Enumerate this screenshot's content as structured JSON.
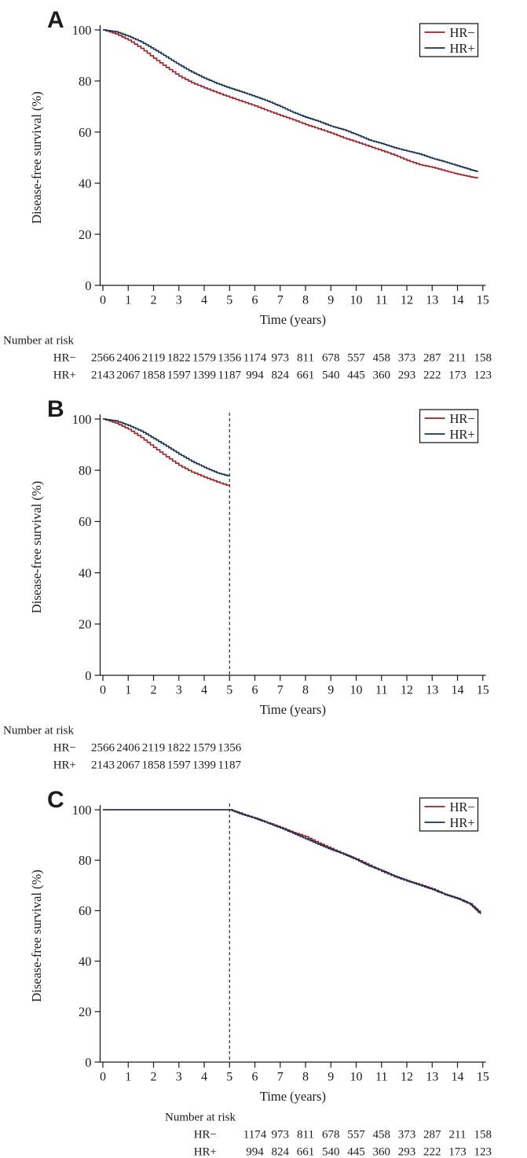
{
  "figure_title": "",
  "colors": {
    "hr_minus": "#9b2026",
    "hr_plus": "#17324f",
    "axis": "#1c1c1c",
    "dashed_line": "#1c1c1c",
    "legend_border": "#1c1c1c",
    "background": "#ffffff"
  },
  "chart_data": [
    {
      "type": "line",
      "panel_label": "A",
      "title": "",
      "xlabel": "Time (years)",
      "ylabel": "Disease-free survival (%)",
      "xlim": [
        0,
        15
      ],
      "ylim": [
        0,
        100
      ],
      "x_ticks": [
        0,
        1,
        2,
        3,
        4,
        5,
        6,
        7,
        8,
        9,
        10,
        11,
        12,
        13,
        14,
        15
      ],
      "y_ticks": [
        0,
        20,
        40,
        60,
        80,
        100
      ],
      "grid": false,
      "step": true,
      "legend_position": "top-right",
      "legend": [
        {
          "label": "HR−",
          "color": "#9b2026"
        },
        {
          "label": "HR+",
          "color": "#17324f"
        }
      ],
      "dashed_vline_x": null,
      "series": [
        {
          "name": "HR−",
          "color": "#9b2026",
          "x": [
            0,
            0.5,
            1,
            1.5,
            2,
            2.5,
            3,
            3.5,
            4,
            4.5,
            5,
            5.5,
            6,
            6.5,
            7,
            7.5,
            8,
            8.5,
            9,
            9.5,
            10,
            10.5,
            11,
            11.5,
            12,
            12.5,
            13,
            13.5,
            14,
            14.5,
            14.8
          ],
          "y": [
            100,
            98.4,
            96.0,
            92.8,
            88.9,
            85.3,
            81.9,
            79.3,
            77.3,
            75.4,
            73.6,
            71.9,
            70.2,
            68.3,
            66.5,
            64.8,
            62.9,
            61.3,
            59.6,
            57.7,
            56.1,
            54.4,
            52.7,
            51.0,
            48.9,
            47.2,
            46.2,
            44.8,
            43.5,
            42.5,
            42.0
          ]
        },
        {
          "name": "HR+",
          "color": "#17324f",
          "x": [
            0,
            0.5,
            1,
            1.5,
            2,
            2.5,
            3,
            3.5,
            4,
            4.5,
            5,
            5.5,
            6,
            6.5,
            7,
            7.5,
            8,
            8.5,
            9,
            9.5,
            10,
            10.5,
            11,
            11.5,
            12,
            12.5,
            13,
            13.5,
            14,
            14.5,
            14.8
          ],
          "y": [
            100,
            99.3,
            97.5,
            95.3,
            92.4,
            89.4,
            86.3,
            83.5,
            81.1,
            79.0,
            77.2,
            75.6,
            73.9,
            72.1,
            70.0,
            67.7,
            65.8,
            64.2,
            62.3,
            60.9,
            59.0,
            56.9,
            55.5,
            53.9,
            52.6,
            51.4,
            49.7,
            48.3,
            46.8,
            45.3,
            44.5
          ]
        }
      ],
      "number_at_risk": {
        "title": "Number at risk",
        "start_year": 0,
        "rows": [
          {
            "label": "HR−",
            "values": [
              2566,
              2406,
              2119,
              1822,
              1579,
              1356,
              1174,
              973,
              811,
              678,
              557,
              458,
              373,
              287,
              211,
              158
            ]
          },
          {
            "label": "HR+",
            "values": [
              2143,
              2067,
              1858,
              1597,
              1399,
              1187,
              994,
              824,
              661,
              540,
              445,
              360,
              293,
              222,
              173,
              123
            ]
          }
        ]
      }
    },
    {
      "type": "line",
      "panel_label": "B",
      "title": "",
      "xlabel": "Time (years)",
      "ylabel": "Disease-free survival (%)",
      "xlim": [
        0,
        15
      ],
      "ylim": [
        0,
        100
      ],
      "x_ticks": [
        0,
        1,
        2,
        3,
        4,
        5,
        6,
        7,
        8,
        9,
        10,
        11,
        12,
        13,
        14,
        15
      ],
      "y_ticks": [
        0,
        20,
        40,
        60,
        80,
        100
      ],
      "grid": false,
      "step": true,
      "legend_position": "top-right",
      "legend": [
        {
          "label": "HR−",
          "color": "#9b2026"
        },
        {
          "label": "HR+",
          "color": "#17324f"
        }
      ],
      "dashed_vline_x": 5,
      "series": [
        {
          "name": "HR−",
          "color": "#9b2026",
          "x": [
            0,
            0.5,
            1,
            1.5,
            2,
            2.5,
            3,
            3.5,
            4,
            4.5,
            5
          ],
          "y": [
            100,
            98.4,
            96.0,
            92.8,
            88.9,
            85.3,
            81.9,
            79.3,
            77.3,
            75.4,
            73.8
          ]
        },
        {
          "name": "HR+",
          "color": "#17324f",
          "x": [
            0,
            0.5,
            1,
            1.5,
            2,
            2.5,
            3,
            3.5,
            4,
            4.5,
            5
          ],
          "y": [
            100,
            99.3,
            97.5,
            95.3,
            92.4,
            89.4,
            86.3,
            83.5,
            81.1,
            79.0,
            77.6
          ]
        }
      ],
      "number_at_risk": {
        "title": "Number at risk",
        "start_year": 0,
        "rows": [
          {
            "label": "HR−",
            "values": [
              2566,
              2406,
              2119,
              1822,
              1579,
              1356
            ]
          },
          {
            "label": "HR+",
            "values": [
              2143,
              2067,
              1858,
              1597,
              1399,
              1187
            ]
          }
        ]
      }
    },
    {
      "type": "line",
      "panel_label": "C",
      "title": "",
      "xlabel": "Time (years)",
      "ylabel": "Disease-free survival (%)",
      "xlim": [
        0,
        15
      ],
      "ylim": [
        0,
        100
      ],
      "x_ticks": [
        0,
        1,
        2,
        3,
        4,
        5,
        6,
        7,
        8,
        9,
        10,
        11,
        12,
        13,
        14,
        15
      ],
      "y_ticks": [
        0,
        20,
        40,
        60,
        80,
        100
      ],
      "grid": false,
      "step": true,
      "legend_position": "top-right",
      "legend": [
        {
          "label": "HR−",
          "color": "#9b2026"
        },
        {
          "label": "HR+",
          "color": "#17324f"
        }
      ],
      "dashed_vline_x": 5,
      "series": [
        {
          "name": "HR−",
          "color": "#9b2026",
          "x": [
            0,
            5,
            5.5,
            6,
            6.5,
            7,
            7.5,
            8,
            8.5,
            9,
            9.5,
            10,
            10.5,
            11,
            11.5,
            12,
            12.5,
            13,
            13.5,
            14,
            14.5,
            14.9
          ],
          "y": [
            100,
            100,
            98.3,
            96.5,
            94.8,
            93.0,
            91.0,
            89.3,
            86.8,
            84.6,
            82.3,
            80.4,
            78.0,
            75.6,
            73.5,
            71.7,
            70.3,
            68.6,
            66.3,
            64.9,
            62.4,
            59.0
          ]
        },
        {
          "name": "HR+",
          "color": "#17324f",
          "x": [
            0,
            5,
            5.5,
            6,
            6.5,
            7,
            7.5,
            8,
            8.5,
            9,
            9.5,
            10,
            10.5,
            11,
            11.5,
            12,
            12.5,
            13,
            13.5,
            14,
            14.5,
            14.9
          ],
          "y": [
            100,
            100,
            98.1,
            96.7,
            94.7,
            92.8,
            90.7,
            88.5,
            86.3,
            84.2,
            82.5,
            80.2,
            77.7,
            75.9,
            73.7,
            71.9,
            70.1,
            68.4,
            66.5,
            64.7,
            62.7,
            58.6
          ]
        }
      ],
      "number_at_risk": {
        "title": "Number at risk",
        "start_year": 6,
        "rows": [
          {
            "label": "HR−",
            "values": [
              1174,
              973,
              811,
              678,
              557,
              458,
              373,
              287,
              211,
              158
            ]
          },
          {
            "label": "HR+",
            "values": [
              994,
              824,
              661,
              540,
              445,
              360,
              293,
              222,
              173,
              123
            ]
          }
        ]
      }
    }
  ]
}
